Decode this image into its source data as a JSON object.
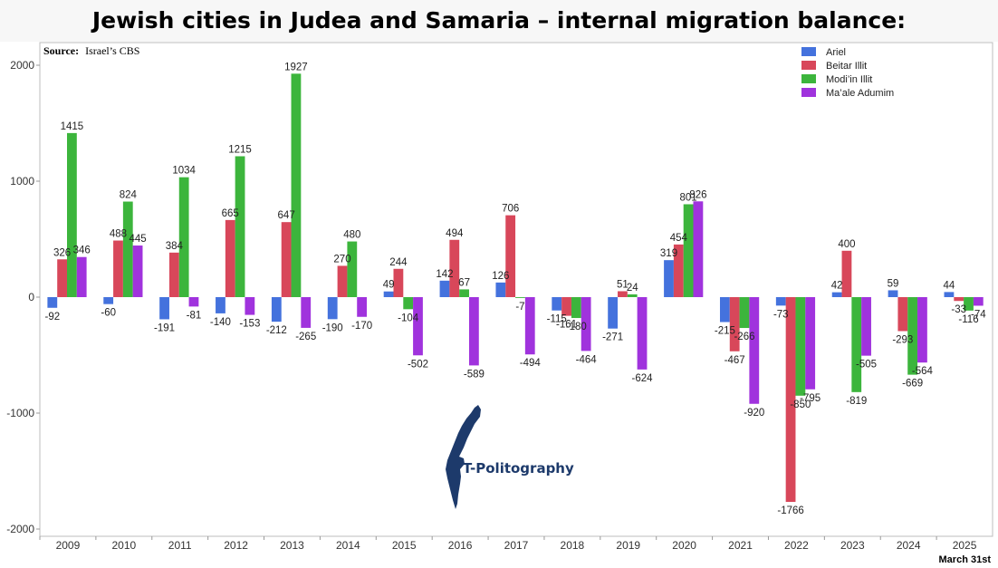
{
  "header": {
    "title": "Jewish cities in Judea and Samaria – internal migration balance:"
  },
  "source": {
    "label": "Source:",
    "text": "Israel’s CBS"
  },
  "footnote": "March 31st",
  "logo": {
    "text": "T-Politography",
    "icon": "israel-map-icon"
  },
  "colors": {
    "Ariel": "#4472dd",
    "Beitar Illit": "#d8475a",
    "Modi’in Illit": "#3cb53c",
    "Ma’ale Adumim": "#a033dd"
  },
  "chart_data": {
    "type": "bar",
    "title": "Jewish cities in Judea and Samaria – internal migration balance:",
    "xlabel": "",
    "ylabel": "",
    "ylim": [
      -2100,
      2100
    ],
    "yticks": [
      -2000,
      -1000,
      0,
      1000,
      2000
    ],
    "grid": false,
    "legend_position": "top-right",
    "categories": [
      "2009",
      "2010",
      "2011",
      "2012",
      "2013",
      "2014",
      "2015",
      "2016",
      "2017",
      "2018",
      "2019",
      "2020",
      "2021",
      "2022",
      "2023",
      "2024",
      "2025"
    ],
    "series": [
      {
        "name": "Ariel",
        "values": [
          -92,
          -60,
          -191,
          -140,
          -212,
          -190,
          49,
          142,
          126,
          -115,
          -271,
          319,
          -215,
          -73,
          42,
          59,
          44
        ]
      },
      {
        "name": "Beitar Illit",
        "values": [
          326,
          488,
          384,
          665,
          647,
          270,
          244,
          494,
          706,
          -161,
          51,
          454,
          -467,
          -1766,
          400,
          -293,
          -33
        ]
      },
      {
        "name": "Modi’in Illit",
        "values": [
          1415,
          824,
          1034,
          1215,
          1927,
          480,
          -104,
          67,
          -7,
          -180,
          24,
          801,
          -266,
          -850,
          -819,
          -669,
          -116
        ]
      },
      {
        "name": "Ma’ale Adumim",
        "values": [
          346,
          445,
          -81,
          -153,
          -265,
          -170,
          -502,
          -589,
          -494,
          -464,
          -624,
          826,
          -920,
          -795,
          -505,
          -564,
          -74
        ]
      }
    ]
  }
}
